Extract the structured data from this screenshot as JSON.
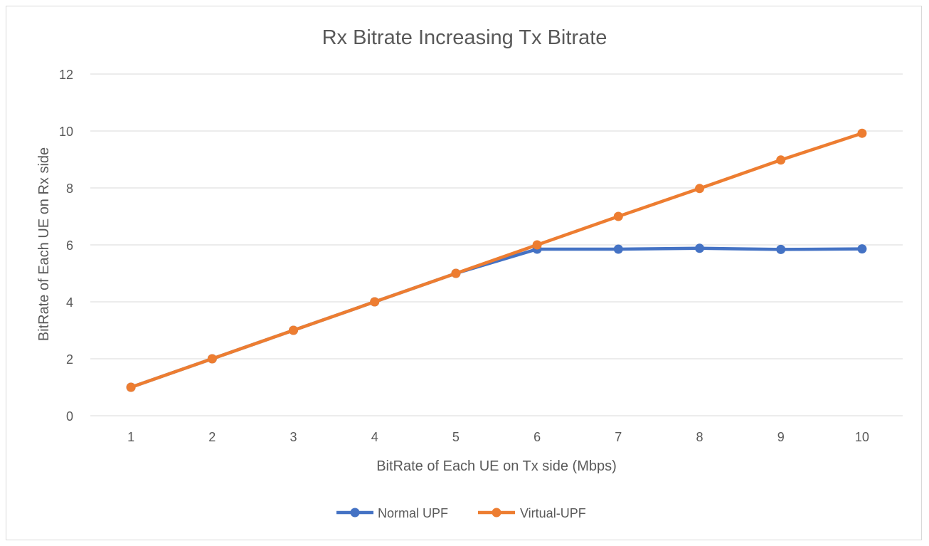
{
  "chart_data": {
    "type": "line",
    "title": "Rx Bitrate Increasing Tx Bitrate",
    "xlabel": "BitRate of Each UE on Tx side (Mbps)",
    "ylabel": "BitRate of Each UE on Rx side",
    "categories": [
      "1",
      "2",
      "3",
      "4",
      "5",
      "6",
      "7",
      "8",
      "9",
      "10"
    ],
    "ylim": [
      0,
      12
    ],
    "yticks": [
      "0",
      "2",
      "4",
      "6",
      "8",
      "10",
      "12"
    ],
    "grid": true,
    "legend_position": "bottom",
    "series": [
      {
        "name": "Normal UPF",
        "color": "#4472c4",
        "values": [
          1,
          2,
          3,
          4,
          5,
          5.85,
          5.85,
          5.88,
          5.84,
          5.86
        ]
      },
      {
        "name": "Virtual-UPF",
        "color": "#ed7d31",
        "values": [
          1,
          2,
          3,
          4,
          5,
          6,
          7,
          7.98,
          8.98,
          9.92
        ]
      }
    ]
  }
}
